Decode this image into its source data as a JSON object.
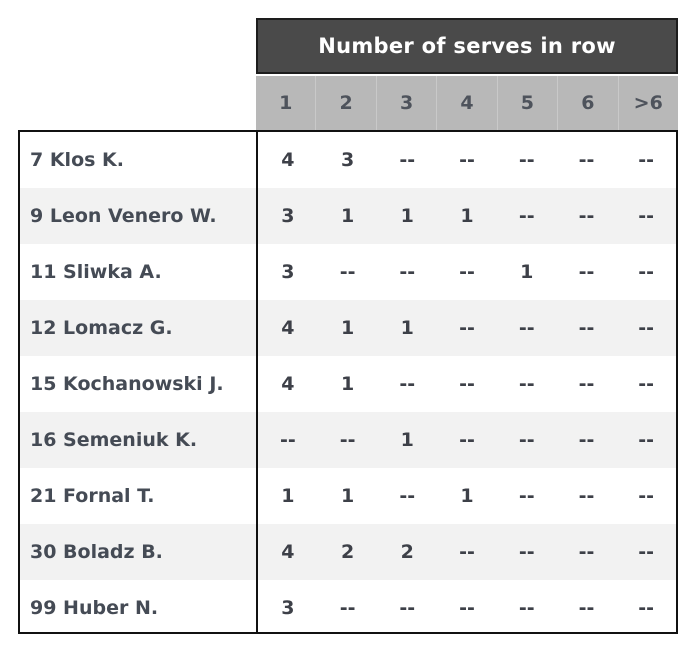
{
  "title": "Number of serves in row",
  "columns": [
    "1",
    "2",
    "3",
    "4",
    "5",
    "6",
    ">6"
  ],
  "rows": [
    {
      "player": "7 Klos K.",
      "values": [
        "4",
        "3",
        "--",
        "--",
        "--",
        "--",
        "--"
      ]
    },
    {
      "player": "9 Leon Venero W.",
      "values": [
        "3",
        "1",
        "1",
        "1",
        "--",
        "--",
        "--"
      ]
    },
    {
      "player": "11 Sliwka A.",
      "values": [
        "3",
        "--",
        "--",
        "--",
        "1",
        "--",
        "--"
      ]
    },
    {
      "player": "12 Lomacz G.",
      "values": [
        "4",
        "1",
        "1",
        "--",
        "--",
        "--",
        "--"
      ]
    },
    {
      "player": "15 Kochanowski J.",
      "values": [
        "4",
        "1",
        "--",
        "--",
        "--",
        "--",
        "--"
      ]
    },
    {
      "player": "16 Semeniuk K.",
      "values": [
        "--",
        "--",
        "1",
        "--",
        "--",
        "--",
        "--"
      ]
    },
    {
      "player": "21 Fornal T.",
      "values": [
        "1",
        "1",
        "--",
        "1",
        "--",
        "--",
        "--"
      ]
    },
    {
      "player": "30 Boladz B.",
      "values": [
        "4",
        "2",
        "2",
        "--",
        "--",
        "--",
        "--"
      ]
    },
    {
      "player": "99 Huber N.",
      "values": [
        "3",
        "--",
        "--",
        "--",
        "--",
        "--",
        "--"
      ]
    }
  ]
}
